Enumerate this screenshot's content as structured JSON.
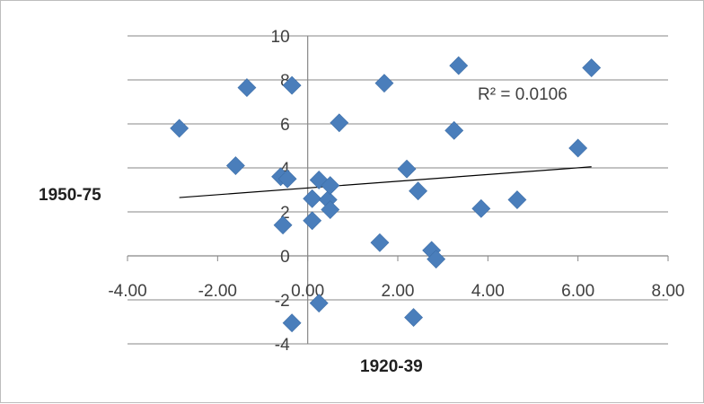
{
  "chart_data": {
    "type": "scatter",
    "title": "",
    "xlabel": "1920-39",
    "ylabel": "1950-75",
    "xlim": [
      -4,
      8
    ],
    "ylim": [
      -4,
      10
    ],
    "x_ticks": [
      -4,
      -2,
      0,
      2,
      4,
      6,
      8
    ],
    "x_tick_labels": [
      "-4.00",
      "-2.00",
      "0.00",
      "2.00",
      "4.00",
      "6.00",
      "8.00"
    ],
    "y_ticks": [
      -4,
      -2,
      0,
      2,
      4,
      6,
      8,
      10
    ],
    "y_tick_labels": [
      "-4",
      "-2",
      "0",
      "2",
      "4",
      "6",
      "8",
      "10"
    ],
    "grid": "horizontal",
    "marker": "diamond",
    "marker_color": "#4a7ebb",
    "gridline_color": "#878787",
    "trendline": {
      "type": "linear",
      "x_range": [
        -2.85,
        6.3
      ],
      "y_range": [
        2.65,
        4.05
      ],
      "color": "#000000",
      "r_squared_label": "R² = 0.0106"
    },
    "points": [
      {
        "x": -2.85,
        "y": 5.8
      },
      {
        "x": -1.6,
        "y": 4.1
      },
      {
        "x": -1.35,
        "y": 7.65
      },
      {
        "x": -0.6,
        "y": 3.6
      },
      {
        "x": -0.55,
        "y": 1.4
      },
      {
        "x": -0.45,
        "y": 3.5
      },
      {
        "x": -0.35,
        "y": 7.75
      },
      {
        "x": -0.35,
        "y": -3.05
      },
      {
        "x": 0.1,
        "y": 2.6
      },
      {
        "x": 0.1,
        "y": 1.6
      },
      {
        "x": 0.25,
        "y": 3.45
      },
      {
        "x": 0.25,
        "y": -2.15
      },
      {
        "x": 0.45,
        "y": 2.55
      },
      {
        "x": 0.5,
        "y": 2.1
      },
      {
        "x": 0.5,
        "y": 3.2
      },
      {
        "x": 0.7,
        "y": 6.05
      },
      {
        "x": 1.6,
        "y": 0.6
      },
      {
        "x": 1.7,
        "y": 7.85
      },
      {
        "x": 2.2,
        "y": 3.95
      },
      {
        "x": 2.35,
        "y": -2.8
      },
      {
        "x": 2.45,
        "y": 2.95
      },
      {
        "x": 2.75,
        "y": 0.25
      },
      {
        "x": 2.85,
        "y": -0.15
      },
      {
        "x": 3.25,
        "y": 5.7
      },
      {
        "x": 3.35,
        "y": 8.65
      },
      {
        "x": 3.85,
        "y": 2.15
      },
      {
        "x": 4.65,
        "y": 2.55
      },
      {
        "x": 6.0,
        "y": 4.9
      },
      {
        "x": 6.3,
        "y": 8.55
      }
    ]
  }
}
